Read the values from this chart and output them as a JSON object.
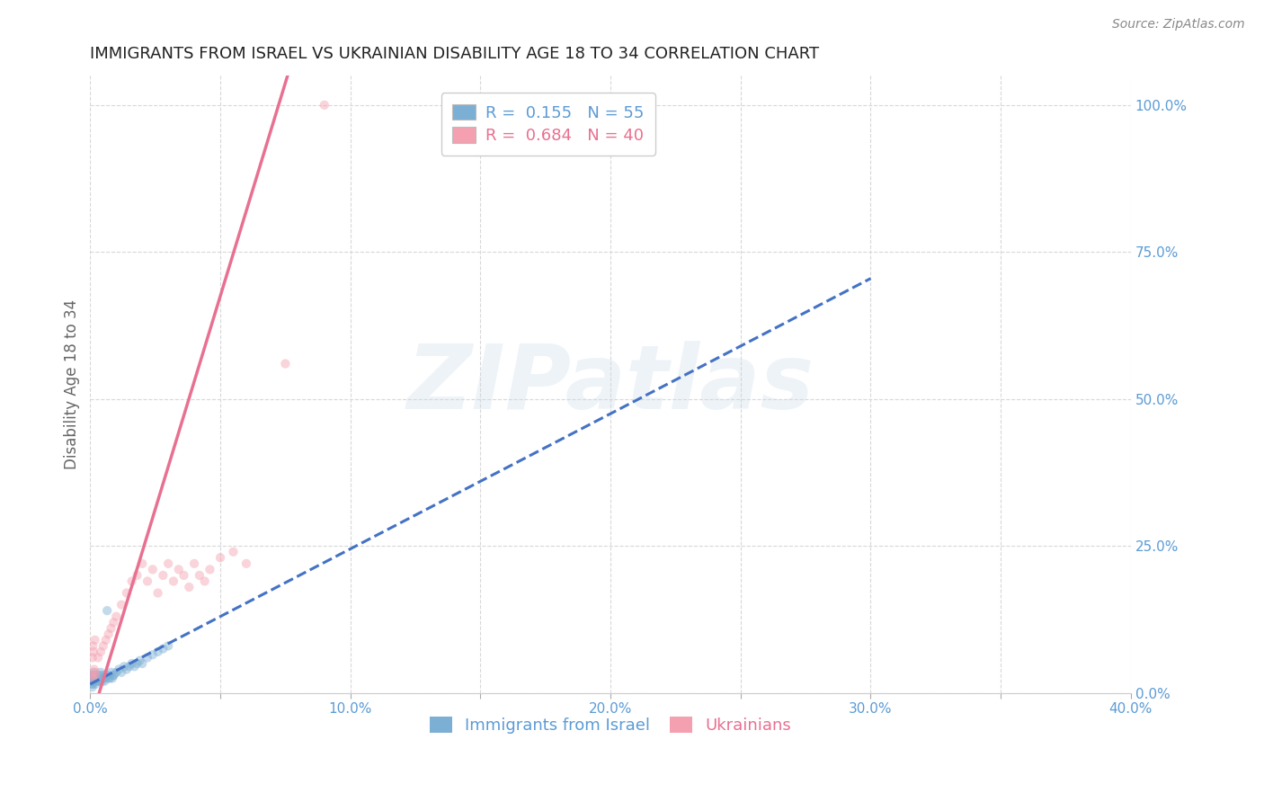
{
  "title": "IMMIGRANTS FROM ISRAEL VS UKRAINIAN DISABILITY AGE 18 TO 34 CORRELATION CHART",
  "source": "Source: ZipAtlas.com",
  "ylabel": "Disability Age 18 to 34",
  "xlim": [
    0.0,
    0.4
  ],
  "ylim": [
    0.0,
    1.05
  ],
  "xticks": [
    0.0,
    0.05,
    0.1,
    0.15,
    0.2,
    0.25,
    0.3,
    0.35,
    0.4
  ],
  "xticklabels": [
    "0.0%",
    "",
    "10.0%",
    "",
    "20.0%",
    "",
    "30.0%",
    "",
    "40.0%"
  ],
  "yticks_right": [
    0.0,
    0.25,
    0.5,
    0.75,
    1.0
  ],
  "ytick_right_labels": [
    "0.0%",
    "25.0%",
    "50.0%",
    "75.0%",
    "100.0%"
  ],
  "israel_color": "#7bafd4",
  "ukraine_color": "#f4a0b0",
  "israel_trend_color": "#4472c4",
  "ukraine_trend_color": "#e87090",
  "background_color": "#ffffff",
  "grid_color": "#d8d8d8",
  "title_color": "#222222",
  "axis_label_color": "#666666",
  "right_axis_color": "#5b9bd5",
  "marker_size": 55,
  "marker_alpha": 0.45,
  "watermark": "ZIPatlas",
  "watermark_color": "#c8d8e8",
  "watermark_alpha": 0.3,
  "legend_label_israel": "R =  0.155   N = 55",
  "legend_label_ukraine": "R =  0.684   N = 40",
  "bottom_legend_israel": "Immigrants from Israel",
  "bottom_legend_ukraine": "Ukrainians",
  "israel_x": [
    0.0005,
    0.001,
    0.0008,
    0.0012,
    0.0015,
    0.0008,
    0.001,
    0.0005,
    0.0018,
    0.002,
    0.0015,
    0.001,
    0.0008,
    0.0012,
    0.0025,
    0.002,
    0.003,
    0.0025,
    0.002,
    0.003,
    0.0035,
    0.003,
    0.004,
    0.0035,
    0.004,
    0.005,
    0.0045,
    0.005,
    0.006,
    0.0055,
    0.006,
    0.007,
    0.0065,
    0.007,
    0.008,
    0.0075,
    0.009,
    0.0085,
    0.009,
    0.01,
    0.011,
    0.012,
    0.013,
    0.014,
    0.015,
    0.016,
    0.017,
    0.018,
    0.019,
    0.02,
    0.022,
    0.024,
    0.026,
    0.028,
    0.03
  ],
  "israel_y": [
    0.03,
    0.025,
    0.02,
    0.035,
    0.02,
    0.025,
    0.03,
    0.015,
    0.025,
    0.03,
    0.02,
    0.015,
    0.01,
    0.02,
    0.025,
    0.03,
    0.02,
    0.025,
    0.015,
    0.03,
    0.02,
    0.025,
    0.03,
    0.02,
    0.035,
    0.025,
    0.02,
    0.03,
    0.025,
    0.02,
    0.03,
    0.025,
    0.14,
    0.03,
    0.035,
    0.025,
    0.03,
    0.025,
    0.03,
    0.035,
    0.04,
    0.035,
    0.045,
    0.04,
    0.045,
    0.05,
    0.045,
    0.05,
    0.055,
    0.05,
    0.06,
    0.065,
    0.07,
    0.075,
    0.08
  ],
  "ukraine_x": [
    0.0005,
    0.001,
    0.0015,
    0.002,
    0.0008,
    0.0012,
    0.001,
    0.0018,
    0.002,
    0.003,
    0.004,
    0.005,
    0.006,
    0.007,
    0.008,
    0.009,
    0.01,
    0.012,
    0.014,
    0.016,
    0.018,
    0.02,
    0.022,
    0.024,
    0.026,
    0.028,
    0.03,
    0.032,
    0.034,
    0.036,
    0.038,
    0.04,
    0.042,
    0.044,
    0.046,
    0.05,
    0.055,
    0.06,
    0.075,
    0.09
  ],
  "ukraine_y": [
    0.03,
    0.025,
    0.04,
    0.035,
    0.06,
    0.07,
    0.08,
    0.09,
    0.03,
    0.06,
    0.07,
    0.08,
    0.09,
    0.1,
    0.11,
    0.12,
    0.13,
    0.15,
    0.17,
    0.19,
    0.2,
    0.22,
    0.19,
    0.21,
    0.17,
    0.2,
    0.22,
    0.19,
    0.21,
    0.2,
    0.18,
    0.22,
    0.2,
    0.19,
    0.21,
    0.23,
    0.24,
    0.22,
    0.56,
    1.0
  ],
  "israel_trend_slope": 2.3,
  "israel_trend_intercept": 0.015,
  "ukraine_trend_slope": 14.5,
  "ukraine_trend_intercept": -0.05
}
